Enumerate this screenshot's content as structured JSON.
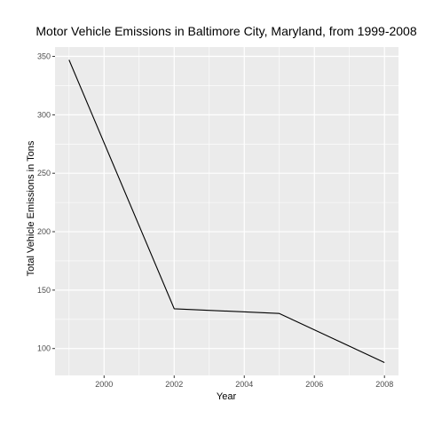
{
  "chart_data": {
    "type": "line",
    "title": "Motor Vehicle Emissions in Baltimore City, Maryland, from 1999-2008",
    "xlabel": "Year",
    "ylabel": "Total Vehicle Emissions in Tons",
    "xlim": [
      1998.6,
      2008.4
    ],
    "ylim": [
      77,
      358
    ],
    "xticks": [
      2000,
      2002,
      2004,
      2006,
      2008
    ],
    "yticks": [
      100,
      150,
      200,
      250,
      300,
      350
    ],
    "x_tick_labels": [
      "2000",
      "2002",
      "2004",
      "2006",
      "2008"
    ],
    "y_tick_labels": [
      "100",
      "150",
      "200",
      "250",
      "300",
      "350"
    ],
    "grid": true,
    "legend": "none",
    "series": [
      {
        "x": [
          1999,
          2002,
          2005,
          2008
        ],
        "values": [
          347,
          134,
          130,
          88
        ],
        "color": "#000000"
      }
    ],
    "panel_color": "#ebebeb",
    "grid_color": "#ffffff"
  }
}
